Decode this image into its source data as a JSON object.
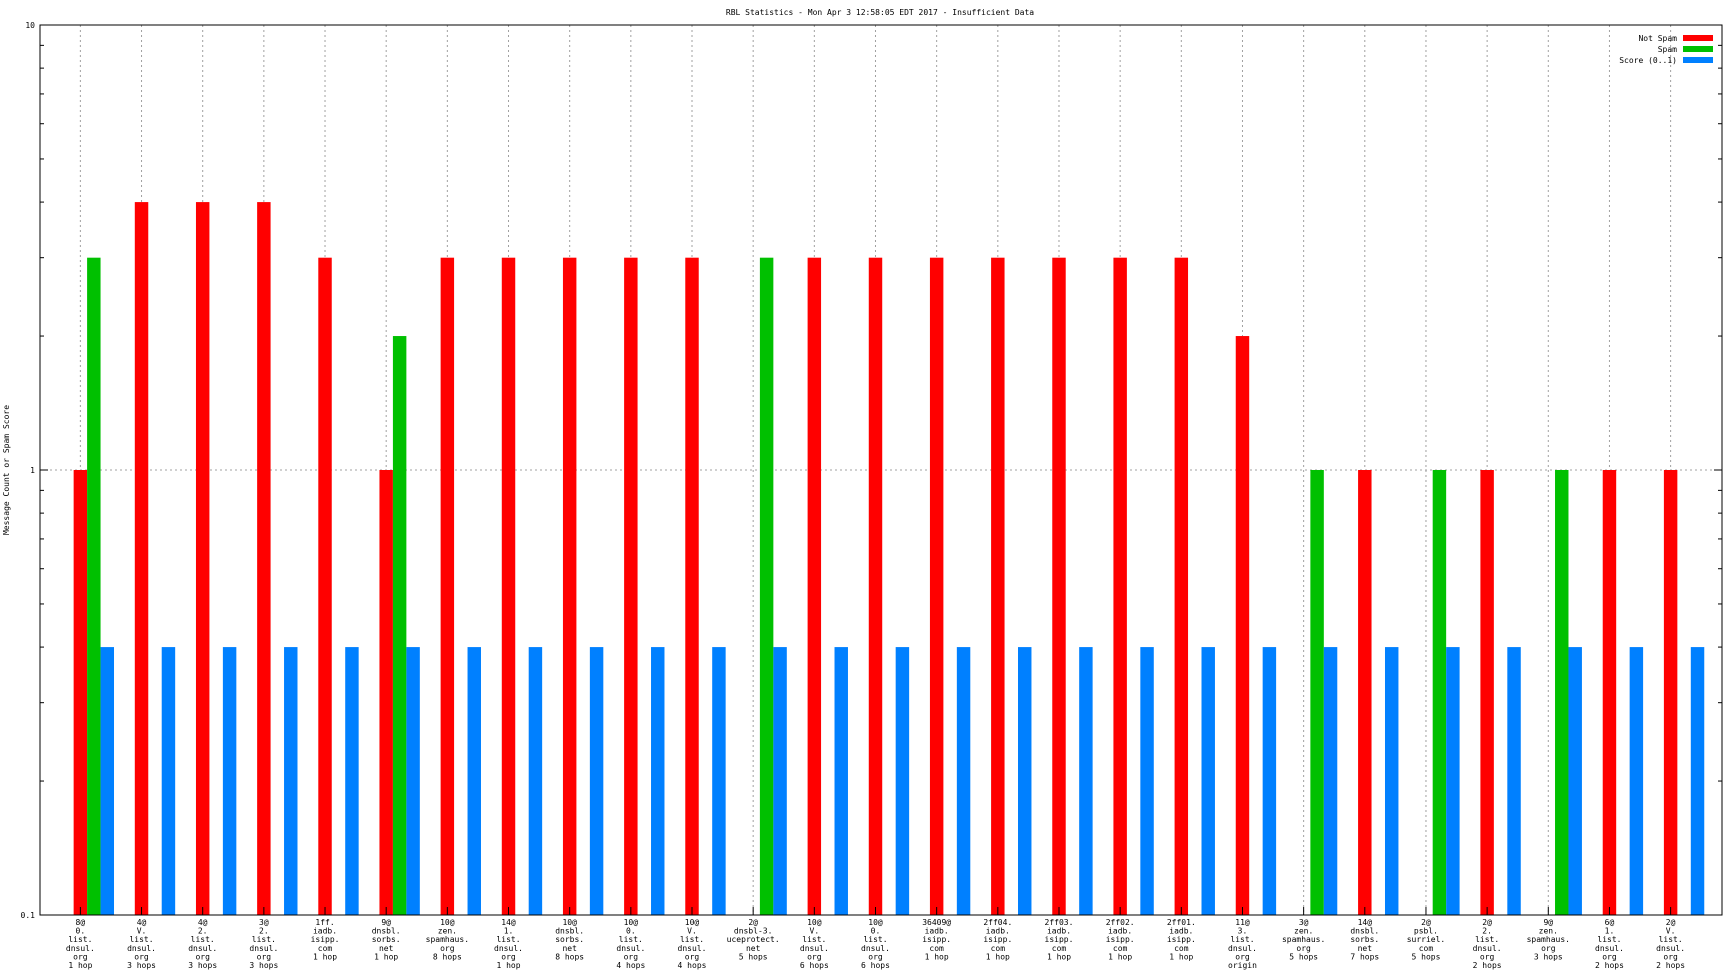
{
  "chart_data": {
    "type": "bar",
    "title": "RBL Statistics - Mon Apr  3 12:58:05 EDT 2017 - Insufficient Data",
    "xlabel": "",
    "ylabel": "Message Count or Spam Score",
    "yscale": "log",
    "ylim": [
      0.1,
      10
    ],
    "yticks": [
      "0.1",
      "1",
      "10"
    ],
    "grid": true,
    "legend_position": "top-right",
    "categories": [
      [
        "8@",
        "0.",
        "list.",
        "dnsul.",
        "org",
        "1 hop"
      ],
      [
        "4@",
        "V.",
        "list.",
        "dnsul.",
        "org",
        "3 hops"
      ],
      [
        "4@",
        "2.",
        "list.",
        "dnsul.",
        "org",
        "3 hops"
      ],
      [
        "3@",
        "2.",
        "list.",
        "dnsul.",
        "org",
        "3 hops"
      ],
      [
        "1ff.",
        "iadb.",
        "isipp.",
        "com",
        "1 hop"
      ],
      [
        "9@",
        "dnsbl.",
        "sorbs.",
        "net",
        "1 hop"
      ],
      [
        "10@",
        "zen.",
        "spamhaus.",
        "org",
        "8 hops"
      ],
      [
        "14@",
        "1.",
        "list.",
        "dnsul.",
        "org",
        "1 hop"
      ],
      [
        "10@",
        "dnsbl.",
        "sorbs.",
        "net",
        "8 hops"
      ],
      [
        "10@",
        "0.",
        "list.",
        "dnsul.",
        "org",
        "4 hops"
      ],
      [
        "10@",
        "V.",
        "list.",
        "dnsul.",
        "org",
        "4 hops"
      ],
      [
        "2@",
        "dnsbl-3.",
        "uceprotect.",
        "net",
        "5 hops"
      ],
      [
        "10@",
        "V.",
        "list.",
        "dnsul.",
        "org",
        "6 hops"
      ],
      [
        "10@",
        "0.",
        "list.",
        "dnsul.",
        "org",
        "6 hops"
      ],
      [
        "36409@",
        "iadb.",
        "isipp.",
        "com",
        "1 hop"
      ],
      [
        "2ff04.",
        "iadb.",
        "isipp.",
        "com",
        "1 hop"
      ],
      [
        "2ff03.",
        "iadb.",
        "isipp.",
        "com",
        "1 hop"
      ],
      [
        "2ff02.",
        "iadb.",
        "isipp.",
        "com",
        "1 hop"
      ],
      [
        "2ff01.",
        "iadb.",
        "isipp.",
        "com",
        "1 hop"
      ],
      [
        "11@",
        "3.",
        "list.",
        "dnsul.",
        "org",
        "origin"
      ],
      [
        "3@",
        "zen.",
        "spamhaus.",
        "org",
        "5 hops"
      ],
      [
        "14@",
        "dnsbl.",
        "sorbs.",
        "net",
        "7 hops"
      ],
      [
        "2@",
        "psbl.",
        "surriel.",
        "com",
        "5 hops"
      ],
      [
        "2@",
        "2.",
        "list.",
        "dnsul.",
        "org",
        "2 hops"
      ],
      [
        "9@",
        "zen.",
        "spamhaus.",
        "org",
        "3 hops"
      ],
      [
        "6@",
        "1.",
        "list.",
        "dnsul.",
        "org",
        "2 hops"
      ],
      [
        "2@",
        "V.",
        "list.",
        "dnsul.",
        "org",
        "2 hops"
      ]
    ],
    "series": [
      {
        "name": "Not Spam",
        "color": "#ff0000",
        "values": [
          1,
          4,
          4,
          4,
          3,
          1,
          3,
          3,
          3,
          3,
          3,
          0,
          3,
          3,
          3,
          3,
          3,
          3,
          3,
          2,
          0,
          1,
          0,
          1,
          0,
          1,
          1
        ]
      },
      {
        "name": "Spam",
        "color": "#00c000",
        "values": [
          3,
          0,
          0,
          0,
          0,
          2,
          0,
          0,
          0,
          0,
          0,
          3,
          0,
          0,
          0,
          0,
          0,
          0,
          0,
          0,
          1,
          0,
          1,
          0,
          1,
          0,
          0
        ]
      },
      {
        "name": "Score (0..1)",
        "color": "#0080ff",
        "values": [
          0.4,
          0.4,
          0.4,
          0.4,
          0.4,
          0.4,
          0.4,
          0.4,
          0.4,
          0.4,
          0.4,
          0.4,
          0.4,
          0.4,
          0.4,
          0.4,
          0.4,
          0.4,
          0.4,
          0.4,
          0.4,
          0.4,
          0.4,
          0.4,
          0.4,
          0.4,
          0.4
        ]
      }
    ]
  }
}
